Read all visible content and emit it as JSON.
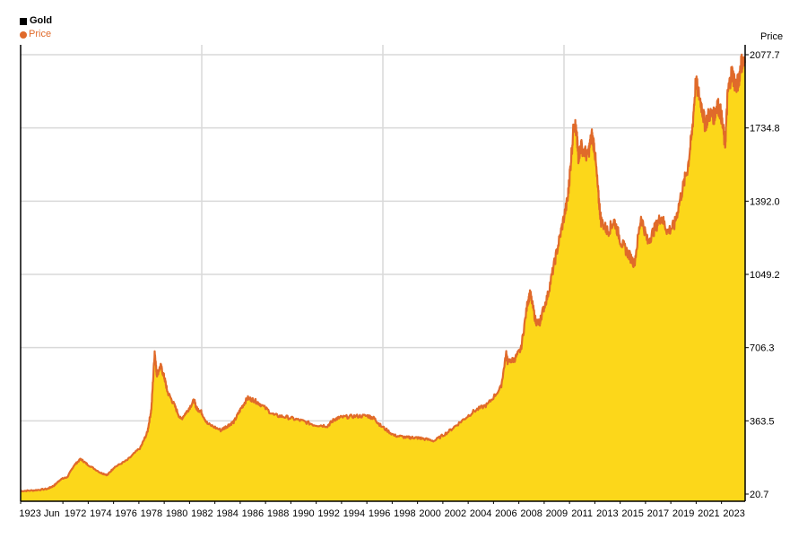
{
  "legend": {
    "title": "Gold",
    "series_label": "Price"
  },
  "colors": {
    "area_fill": "#FCD71A",
    "line": "#E06A2A",
    "grid": "#d9d9d9",
    "axis": "#000000"
  },
  "chart_data": {
    "type": "area",
    "title": "Gold",
    "xlabel": "",
    "ylabel": "Price",
    "grid": true,
    "legend_position": "top-left",
    "ylim": [
      20.7,
      2077.7
    ],
    "xlim": [
      1970.0,
      2024.3
    ],
    "y_ticks": [
      "20.7",
      "363.5",
      "706.3",
      "1049.2",
      "1392.0",
      "1734.8",
      "2077.7"
    ],
    "x_tick_labels": [
      "1923 Jun",
      "1972",
      "1974",
      "1976",
      "1978",
      "1980",
      "1982",
      "1984",
      "1986",
      "1988",
      "1990",
      "1992",
      "1994",
      "1996",
      "1998",
      "2000",
      "2002",
      "2004",
      "2006",
      "2008",
      "2009",
      "2011",
      "2013",
      "2015",
      "2017",
      "2019",
      "2021",
      "2023"
    ],
    "series": [
      {
        "name": "Price",
        "x": [
          1970.0,
          1971.0,
          1972.0,
          1972.5,
          1973.0,
          1973.5,
          1974.0,
          1974.5,
          1975.0,
          1976.0,
          1976.5,
          1977.0,
          1978.0,
          1979.0,
          1979.5,
          1979.8,
          1980.05,
          1980.2,
          1980.5,
          1980.8,
          1981.0,
          1981.5,
          1982.0,
          1982.5,
          1983.0,
          1983.2,
          1983.5,
          1984.0,
          1985.0,
          1985.5,
          1986.0,
          1986.5,
          1987.0,
          1987.5,
          1988.0,
          1989.0,
          1990.0,
          1991.0,
          1992.0,
          1993.0,
          1993.5,
          1994.0,
          1995.0,
          1996.0,
          1996.5,
          1997.0,
          1998.0,
          1999.0,
          1999.5,
          2000.0,
          2001.0,
          2002.0,
          2003.0,
          2004.0,
          2005.0,
          2006.0,
          2006.4,
          2006.5,
          2007.0,
          2007.5,
          2008.0,
          2008.2,
          2008.6,
          2008.9,
          2009.0,
          2009.5,
          2010.0,
          2010.5,
          2011.0,
          2011.2,
          2011.5,
          2011.7,
          2011.8,
          2012.0,
          2012.5,
          2012.8,
          2013.0,
          2013.3,
          2013.5,
          2014.0,
          2014.5,
          2015.0,
          2015.5,
          2016.0,
          2016.5,
          2017.0,
          2017.5,
          2018.0,
          2018.5,
          2019.0,
          2019.5,
          2020.0,
          2020.3,
          2020.6,
          2021.0,
          2021.3,
          2021.6,
          2022.0,
          2022.2,
          2022.5,
          2022.8,
          2023.0,
          2023.3,
          2023.6,
          2023.8,
          2024.0,
          2024.3
        ],
        "y": [
          35,
          38,
          45,
          60,
          90,
          100,
          155,
          185,
          160,
          120,
          110,
          145,
          180,
          240,
          310,
          420,
          690,
          580,
          620,
          560,
          500,
          440,
          370,
          410,
          460,
          420,
          410,
          350,
          320,
          340,
          360,
          420,
          470,
          460,
          440,
          390,
          380,
          365,
          345,
          340,
          370,
          380,
          385,
          387,
          375,
          340,
          295,
          285,
          285,
          282,
          270,
          310,
          360,
          410,
          440,
          520,
          680,
          640,
          650,
          700,
          920,
          960,
          830,
          820,
          850,
          950,
          1100,
          1250,
          1400,
          1550,
          1780,
          1680,
          1600,
          1650,
          1600,
          1700,
          1650,
          1420,
          1300,
          1250,
          1300,
          1200,
          1150,
          1100,
          1320,
          1200,
          1260,
          1320,
          1250,
          1280,
          1420,
          1550,
          1700,
          1950,
          1850,
          1750,
          1800,
          1790,
          1850,
          1800,
          1650,
          1900,
          2000,
          1930,
          1950,
          2040,
          2040
        ]
      }
    ]
  }
}
